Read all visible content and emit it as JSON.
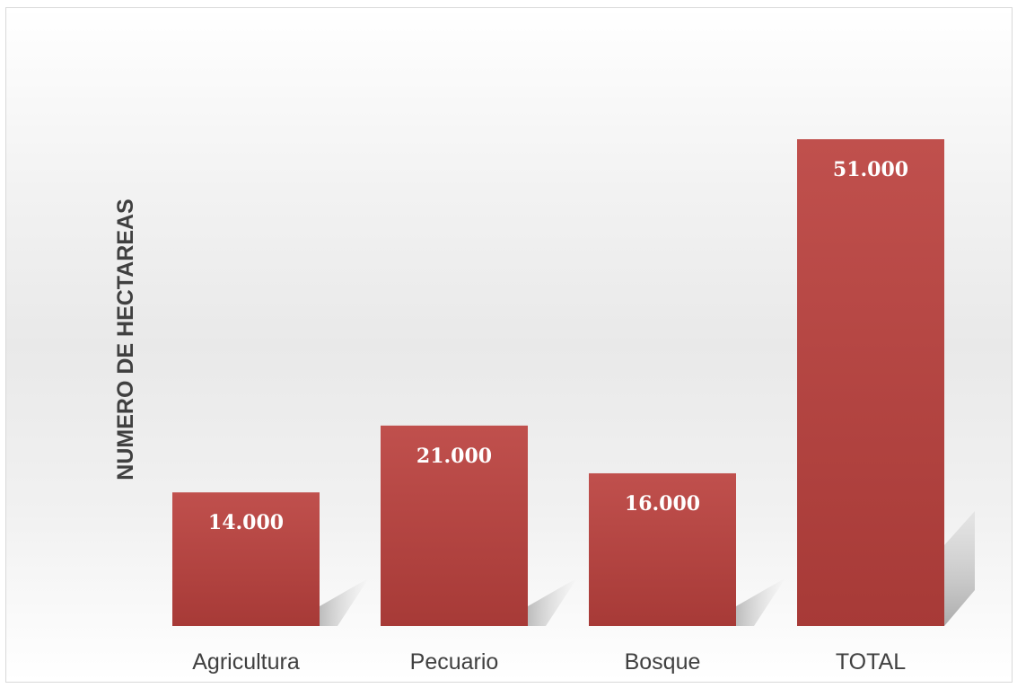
{
  "colors": {
    "bar": "#b5403e",
    "bar_light": "#c0504d",
    "bar_dark": "#a73a37",
    "text": "#404040",
    "value_label": "#ffffff"
  },
  "chart_data": {
    "type": "bar",
    "title": "",
    "xlabel": "",
    "ylabel": "NUMERO DE HECTAREAS",
    "categories": [
      "Agricultura",
      "Pecuario",
      "Bosque",
      "TOTAL"
    ],
    "values": [
      14000,
      21000,
      16000,
      51000
    ],
    "value_labels": [
      "14.000",
      "21.000",
      "16.000",
      "51.000"
    ],
    "ylim": [
      0,
      51000
    ],
    "grid": false,
    "legend": "none"
  }
}
